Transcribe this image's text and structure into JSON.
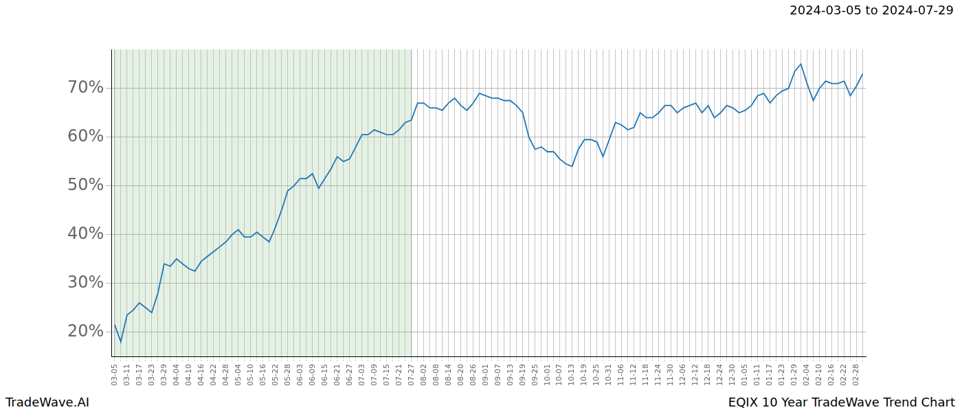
{
  "chart_data": {
    "type": "line",
    "title": "2024-03-05 to 2024-07-29",
    "footer_left": "TradeWave.AI",
    "footer_right": "EQIX 10 Year TradeWave Trend Chart",
    "categories": [
      "03-05",
      null,
      "03-11",
      null,
      "03-17",
      null,
      "03-23",
      null,
      "03-29",
      null,
      "04-04",
      null,
      "04-10",
      null,
      "04-16",
      null,
      "04-22",
      null,
      "04-28",
      null,
      "05-04",
      null,
      "05-10",
      null,
      "05-16",
      null,
      "05-22",
      null,
      "05-28",
      null,
      "06-03",
      null,
      "06-09",
      null,
      "06-15",
      null,
      "06-21",
      null,
      "06-27",
      null,
      "07-03",
      null,
      "07-09",
      null,
      "07-15",
      null,
      "07-21",
      null,
      "07-27",
      null,
      "08-02",
      null,
      "08-08",
      null,
      "08-14",
      null,
      "08-20",
      null,
      "08-26",
      null,
      "09-01",
      null,
      "09-07",
      null,
      "09-13",
      null,
      "09-19",
      null,
      "09-25",
      null,
      "10-01",
      null,
      "10-07",
      null,
      "10-13",
      null,
      "10-19",
      null,
      "10-25",
      null,
      "10-31",
      null,
      "11-06",
      null,
      "11-12",
      null,
      "11-18",
      null,
      "11-24",
      null,
      "11-30",
      null,
      "12-06",
      null,
      "12-12",
      null,
      "12-18",
      null,
      "12-24",
      null,
      "12-30",
      null,
      "01-05",
      null,
      "01-11",
      null,
      "01-17",
      null,
      "01-23",
      null,
      "01-29",
      null,
      "02-04",
      null,
      "02-10",
      null,
      "02-16",
      null,
      "02-22",
      null,
      "02-28",
      null
    ],
    "values": [
      21.5,
      18,
      23.5,
      24.5,
      26,
      25,
      24,
      28,
      34,
      33.5,
      35,
      34,
      33,
      32.5,
      34.5,
      35.5,
      36.5,
      37.5,
      38.5,
      40,
      41,
      39.5,
      39.5,
      40.5,
      39.5,
      38.5,
      41.5,
      45,
      49,
      50,
      51.5,
      51.5,
      52.5,
      49.5,
      51.5,
      53.5,
      56,
      55,
      55.5,
      58,
      60.5,
      60.5,
      61.5,
      61,
      60.5,
      60.5,
      61.5,
      63,
      63.5,
      67,
      67,
      66,
      66,
      65.5,
      67,
      68,
      66.5,
      65.5,
      67,
      69,
      68.5,
      68,
      68,
      67.5,
      67.5,
      66.5,
      65,
      60,
      57.5,
      58,
      57,
      57,
      55.5,
      54.5,
      54,
      57.5,
      59.5,
      59.5,
      59,
      56,
      59.5,
      63,
      62.5,
      61.5,
      62,
      65,
      64,
      64,
      65,
      66.5,
      66.5,
      65,
      66,
      66.5,
      67,
      65,
      66.5,
      64,
      65,
      66.5,
      66,
      65,
      65.5,
      66.5,
      68.5,
      69,
      67,
      68.5,
      69.5,
      70,
      73.5,
      75,
      71,
      67.5,
      70,
      71.5,
      71,
      71,
      71.5,
      68.5,
      70.5,
      73
    ],
    "color": "#1f77b4",
    "shaded_range": [
      "03-05",
      "07-27"
    ],
    "ylim": [
      15,
      78
    ],
    "yticks": [
      {
        "value": 20,
        "label": "20%"
      },
      {
        "value": 30,
        "label": "30%"
      },
      {
        "value": 40,
        "label": "40%"
      },
      {
        "value": 50,
        "label": "50%"
      },
      {
        "value": 60,
        "label": "60%"
      },
      {
        "value": 70,
        "label": "70%"
      }
    ],
    "grid": true
  }
}
